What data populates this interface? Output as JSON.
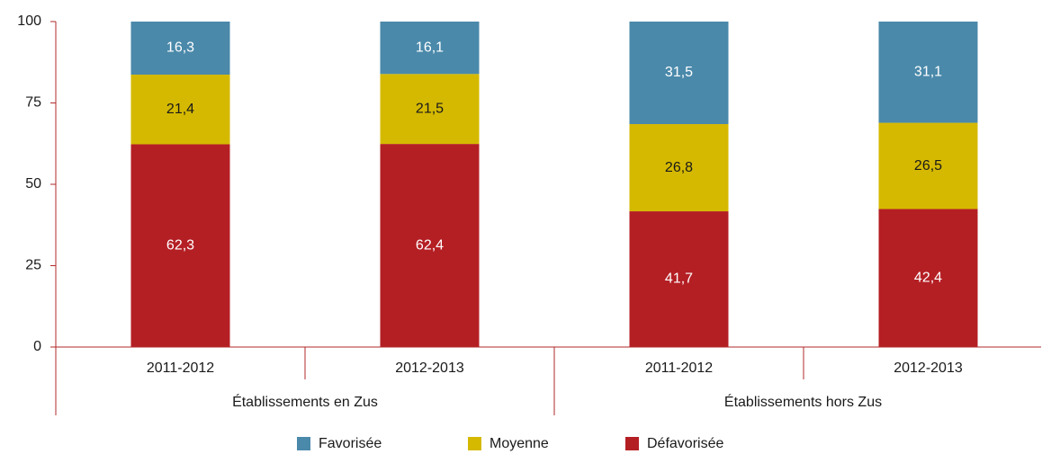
{
  "chart_data": {
    "type": "stacked_bar",
    "groups": [
      {
        "name": "Établissements en Zus",
        "span": 2
      },
      {
        "name": "Établissements hors Zus",
        "span": 2
      }
    ],
    "categories": [
      "2011-2012",
      "2012-2013",
      "2011-2012",
      "2012-2013"
    ],
    "series": [
      {
        "name": "Favorisée",
        "color": "#4a89aa",
        "label_color": "#ffffff",
        "values": [
          16.3,
          16.1,
          31.5,
          31.1
        ],
        "value_labels": [
          "16,3",
          "16,1",
          "31,5",
          "31,1"
        ]
      },
      {
        "name": "Moyenne",
        "color": "#d5b900",
        "label_color": "#1a1a1a",
        "values": [
          21.4,
          21.5,
          26.8,
          26.5
        ],
        "value_labels": [
          "21,4",
          "21,5",
          "26,8",
          "26,5"
        ]
      },
      {
        "name": "Défavorisée",
        "color": "#b41f24",
        "label_color": "#ffffff",
        "values": [
          62.3,
          62.4,
          41.7,
          42.4
        ],
        "value_labels": [
          "62,3",
          "62,4",
          "41,7",
          "42,4"
        ]
      }
    ],
    "ylim": [
      0,
      100
    ],
    "yticks": [
      0,
      25,
      50,
      75,
      100
    ],
    "grid": false,
    "legend": "bottom"
  }
}
